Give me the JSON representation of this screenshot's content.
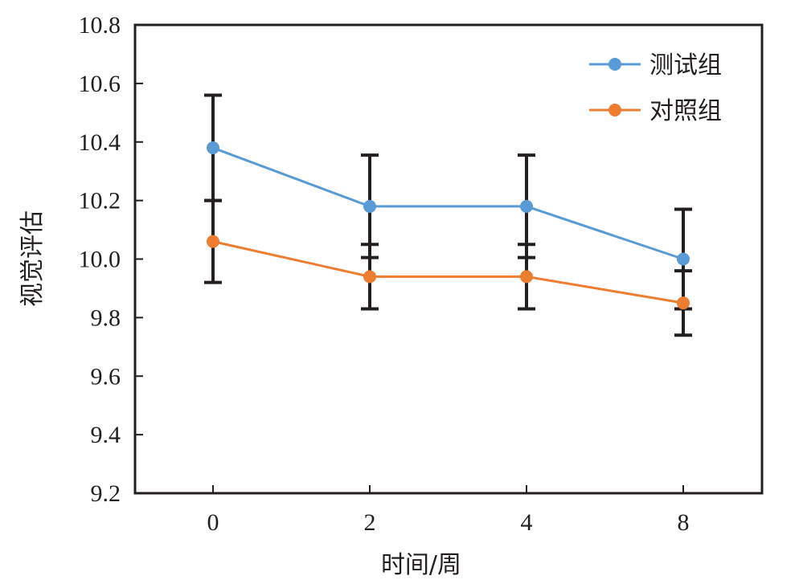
{
  "chart_data": {
    "type": "line",
    "xlabel": "时间/周",
    "ylabel": "视觉评估",
    "categories": [
      "0",
      "2",
      "4",
      "8"
    ],
    "y_ticks": [
      "9.2",
      "9.4",
      "9.6",
      "9.8",
      "10.0",
      "10.2",
      "10.4",
      "10.6",
      "10.8"
    ],
    "ylim": [
      9.2,
      10.8
    ],
    "grid": false,
    "legend_position": "top-right",
    "series": [
      {
        "name": "测试组",
        "color": "#5b9bd5",
        "values": [
          10.38,
          10.18,
          10.18,
          10.0
        ],
        "error": [
          0.18,
          0.175,
          0.175,
          0.17
        ]
      },
      {
        "name": "对照组",
        "color": "#ed7d31",
        "values": [
          10.06,
          9.94,
          9.94,
          9.85
        ],
        "error": [
          0.14,
          0.11,
          0.11,
          0.11
        ]
      }
    ],
    "error_bar_color": "#231f20"
  }
}
